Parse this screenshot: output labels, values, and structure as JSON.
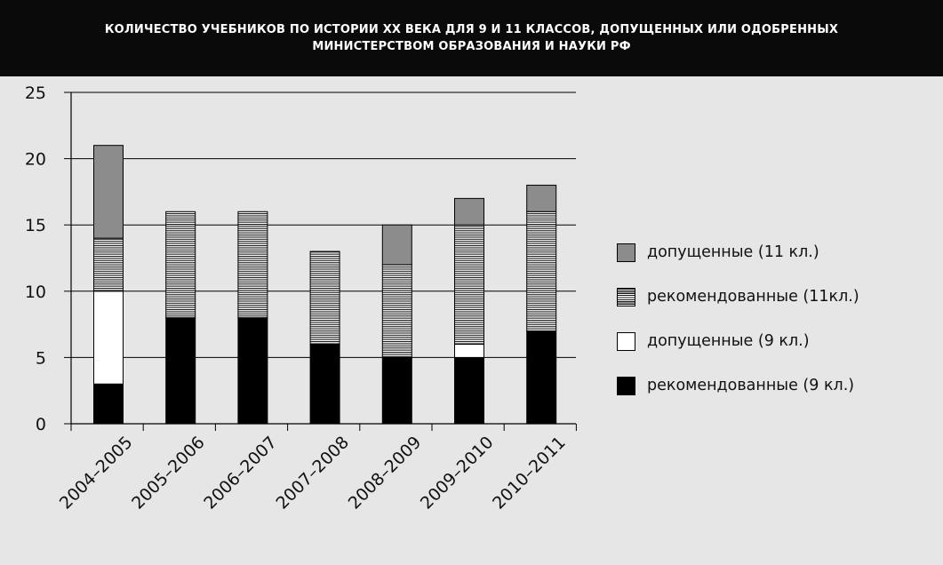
{
  "title": {
    "line1": "КОЛИЧЕСТВО УЧЕБНИКОВ ПО ИСТОРИИ XX ВЕКА ДЛЯ 9 И 11 КЛАССОВ, ДОПУЩЕННЫХ ИЛИ ОДОБРЕННЫХ",
    "line2": "МИНИСТЕРСТВОМ ОБРАЗОВАНИЯ И НАУКИ РФ"
  },
  "legend": [
    {
      "label": "допущенные (11 кл.)",
      "style": "grey"
    },
    {
      "label": "рекомендованные (11кл.)",
      "style": "stripe"
    },
    {
      "label": "допущенные (9 кл.)",
      "style": "white"
    },
    {
      "label": "рекомендованные (9 кл.)",
      "style": "black"
    }
  ],
  "colors": {
    "background": "#e6e6e6",
    "header_bg": "#0a0a0a",
    "grey_fill": "#8c8c8c",
    "black_fill": "#000000"
  },
  "chart_data": {
    "type": "bar",
    "stacked": true,
    "title": "КОЛИЧЕСТВО УЧЕБНИКОВ ПО ИСТОРИИ XX ВЕКА ДЛЯ 9 И 11 КЛАССОВ, ДОПУЩЕННЫХ ИЛИ ОДОБРЕННЫХ МИНИСТЕРСТВОМ ОБРАЗОВАНИЯ И НАУКИ РФ",
    "xlabel": "",
    "ylabel": "",
    "categories": [
      "2004–2005",
      "2005–2006",
      "2006–2007",
      "2007–2008",
      "2008–2009",
      "2009–2010",
      "2010–2011"
    ],
    "series": [
      {
        "name": "рекомендованные (9 кл.)",
        "style": "black",
        "values": [
          3,
          8,
          8,
          6,
          5,
          5,
          7
        ]
      },
      {
        "name": "допущенные (9 кл.)",
        "style": "white",
        "values": [
          7,
          0,
          0,
          0,
          0,
          1,
          0
        ]
      },
      {
        "name": "рекомендованные (11кл.)",
        "style": "stripe",
        "values": [
          4,
          8,
          8,
          7,
          7,
          9,
          9
        ]
      },
      {
        "name": "допущенные (11 кл.)",
        "style": "grey",
        "values": [
          7,
          0,
          0,
          0,
          3,
          2,
          2
        ]
      }
    ],
    "ylim": [
      0,
      25
    ],
    "yticks": [
      0,
      5,
      10,
      15,
      20,
      25
    ],
    "grid": true,
    "legend_position": "right"
  }
}
